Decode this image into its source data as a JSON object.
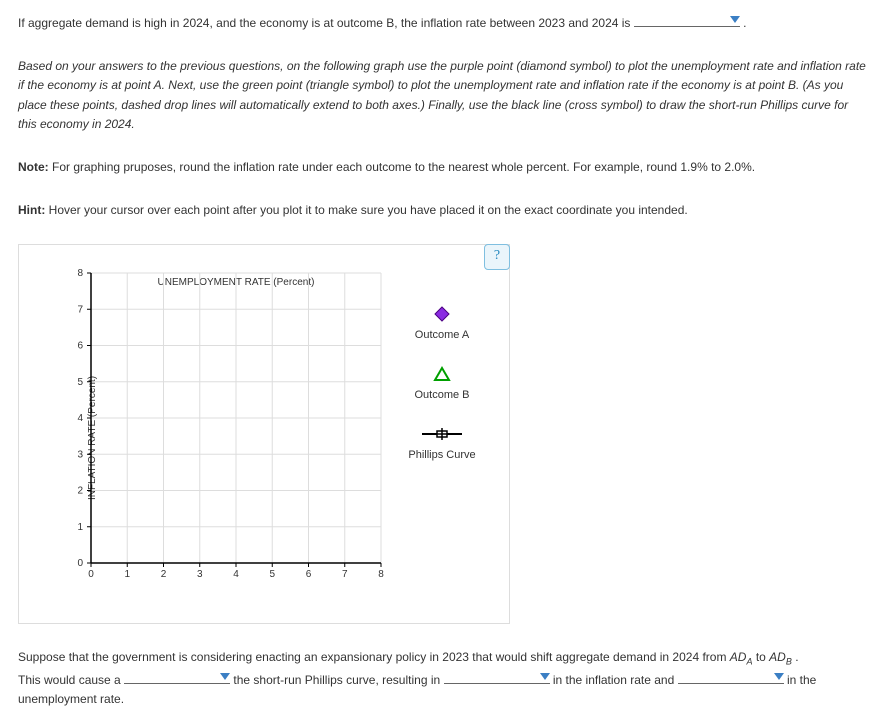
{
  "intro_sentence": {
    "pre": "If aggregate demand is high in 2024, and the economy is at outcome B, the inflation rate between 2023 and 2024 is ",
    "post": " ."
  },
  "instructions": "Based on your answers to the previous questions, on the following graph use the purple point (diamond symbol) to plot the unemployment rate and inflation rate if the economy is at point A. Next, use the green point (triangle symbol) to plot the unemployment rate and inflation rate if the economy is at point B. (As you place these points, dashed drop lines will automatically extend to both axes.) Finally, use the black line (cross symbol) to draw the short-run Phillips curve for this economy in 2024.",
  "note_label": "Note:",
  "note_text": " For graphing pruposes, round the inflation rate under each outcome to the nearest whole percent. For example, round 1.9% to 2.0%.",
  "hint_label": "Hint:",
  "hint_text": " Hover your cursor over each point after you plot it to make sure you have placed it on the exact coordinate you intended.",
  "help_symbol": "?",
  "chart": {
    "xlabel": "UNEMPLOYMENT RATE (Percent)",
    "ylabel": "INFLATION RATE (Percent)",
    "xlim": [
      0,
      8
    ],
    "ylim": [
      0,
      8
    ],
    "ticks": [
      0,
      1,
      2,
      3,
      4,
      5,
      6,
      7,
      8
    ],
    "axis_color": "#000000",
    "grid_color": "#dddddd",
    "background": "#ffffff",
    "tick_fontsize": 10
  },
  "legend": {
    "outcome_a": {
      "label": "Outcome A",
      "color": "#8a2be2",
      "shape": "diamond"
    },
    "outcome_b": {
      "label": "Outcome B",
      "color": "#00a000",
      "shape": "triangle"
    },
    "phillips": {
      "label": "Phillips Curve",
      "color": "#000000",
      "shape": "cross-line"
    }
  },
  "closing": {
    "part1_pre": "Suppose that the government is considering enacting an expansionary policy in 2023 that would shift aggregate demand in 2024 from ",
    "ad_a": "AD",
    "ad_a_sub": "A",
    "to": " to ",
    "ad_b": "AD",
    "ad_b_sub": "B",
    "part1_post": " .",
    "part2_a": "This would cause a ",
    "part2_b": " the short-run Phillips curve, resulting in ",
    "part2_c": " in the inflation rate and ",
    "part2_d": " in the unemployment rate."
  },
  "colors": {
    "caret": "#3b7fc4"
  }
}
